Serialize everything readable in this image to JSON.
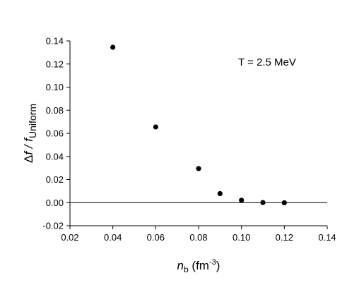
{
  "chart_data": {
    "type": "scatter",
    "title": "",
    "annotation": "T = 2.5 MeV",
    "xlabel": {
      "main": "n",
      "subscript": "b",
      "unit_open": " (fm",
      "unit_exp": "-3",
      "unit_close": ")"
    },
    "ylabel": {
      "delta": "Δ",
      "main": "f / f",
      "subscript": "Uniform"
    },
    "xlim": [
      0.02,
      0.14
    ],
    "ylim": [
      -0.02,
      0.14
    ],
    "xticks": [
      "0.02",
      "0.04",
      "0.06",
      "0.08",
      "0.10",
      "0.12",
      "0.14"
    ],
    "yticks": [
      "-0.02",
      "0.00",
      "0.02",
      "0.04",
      "0.06",
      "0.08",
      "0.10",
      "0.12",
      "0.14"
    ],
    "reference_line_y": 0,
    "grid": false,
    "legend": "none",
    "marker_color": "#000000",
    "series": [
      {
        "x": [
          0.04,
          0.06,
          0.08,
          0.09,
          0.1,
          0.11,
          0.12
        ],
        "y": [
          0.1345,
          0.0655,
          0.0295,
          0.0078,
          0.0021,
          0.0001,
          -0.0001
        ]
      }
    ]
  }
}
